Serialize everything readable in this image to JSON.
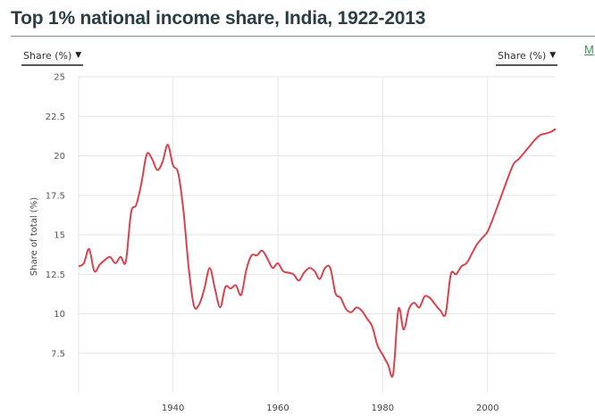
{
  "header": {
    "title": "Top 1% national income share, India, 1922-2013",
    "left_selector": "Share (%)",
    "right_selector": "Share (%)",
    "more_link": "M"
  },
  "colors": {
    "line": "#d9434e",
    "grid": "#e6e6e6",
    "title": "#2c3e45",
    "link": "#2e9a5b"
  },
  "chart_data": {
    "type": "line",
    "title": "Top 1% national income share, India, 1922-2013",
    "xlabel": "",
    "ylabel": "Share of total (%)",
    "xlim": [
      1922,
      2013
    ],
    "ylim": [
      5,
      25
    ],
    "yticks": [
      7.5,
      10,
      12.5,
      15,
      17.5,
      20,
      22.5,
      25
    ],
    "xticks": [
      1940,
      1960,
      1980,
      2000
    ],
    "grid": true,
    "series": [
      {
        "name": "",
        "x": [
          1922,
          1923,
          1924,
          1925,
          1926,
          1927,
          1928,
          1929,
          1930,
          1931,
          1932,
          1933,
          1934,
          1935,
          1936,
          1937,
          1938,
          1939,
          1940,
          1941,
          1942,
          1943,
          1944,
          1945,
          1946,
          1947,
          1948,
          1949,
          1950,
          1951,
          1952,
          1953,
          1954,
          1955,
          1956,
          1957,
          1958,
          1959,
          1960,
          1961,
          1962,
          1963,
          1964,
          1965,
          1966,
          1967,
          1968,
          1969,
          1970,
          1971,
          1972,
          1973,
          1974,
          1975,
          1976,
          1977,
          1978,
          1979,
          1980,
          1981,
          1982,
          1983,
          1984,
          1985,
          1986,
          1987,
          1988,
          1989,
          1990,
          1991,
          1992,
          1993,
          1994,
          1995,
          1996,
          1997,
          1998,
          1999,
          2000,
          2001,
          2002,
          2003,
          2004,
          2005,
          2006,
          2007,
          2008,
          2009,
          2010,
          2011,
          2012,
          2013
        ],
        "values": [
          13.0,
          13.2,
          14.1,
          12.7,
          13.1,
          13.4,
          13.6,
          13.2,
          13.6,
          13.3,
          16.4,
          16.9,
          18.3,
          20.1,
          19.8,
          19.1,
          19.6,
          20.7,
          19.4,
          18.9,
          16.5,
          12.9,
          10.5,
          10.6,
          11.6,
          12.9,
          11.6,
          10.4,
          11.7,
          11.6,
          11.8,
          11.2,
          12.8,
          13.7,
          13.7,
          14.0,
          13.5,
          12.9,
          13.2,
          12.7,
          12.6,
          12.5,
          12.1,
          12.6,
          12.9,
          12.7,
          12.2,
          12.9,
          12.9,
          11.3,
          11.0,
          10.3,
          10.1,
          10.4,
          10.2,
          9.7,
          9.2,
          8.0,
          7.4,
          6.8,
          6.2,
          10.3,
          9.0,
          10.3,
          10.7,
          10.4,
          11.1,
          11.0,
          10.6,
          10.2,
          10.0,
          12.5,
          12.5,
          13.0,
          13.2,
          13.8,
          14.4,
          14.8,
          15.2,
          16.0,
          16.9,
          17.8,
          18.7,
          19.5,
          19.8,
          20.2,
          20.6,
          21.0,
          21.3,
          21.4,
          21.5,
          21.7
        ]
      }
    ]
  }
}
